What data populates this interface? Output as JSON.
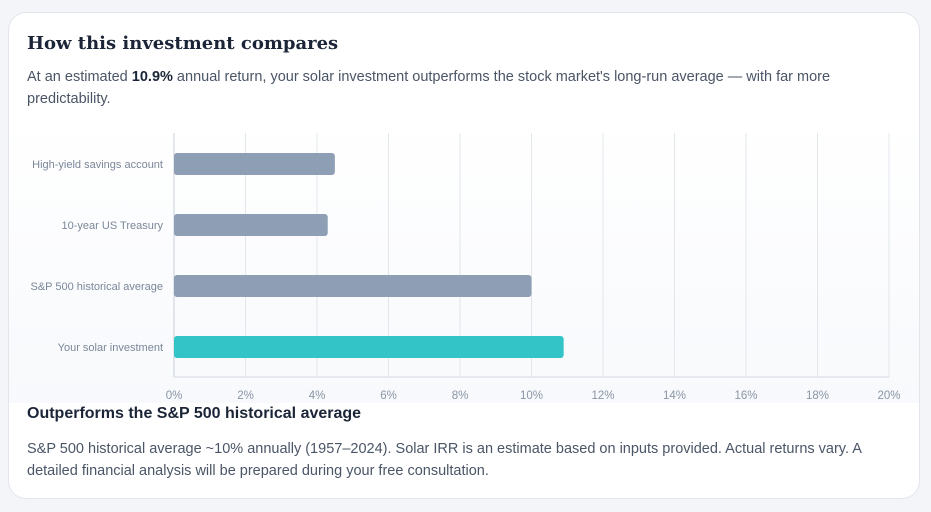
{
  "card": {
    "title": "How this investment compares",
    "intro_before": "At an estimated ",
    "intro_highlight": "10.9%",
    "intro_after": " annual return, your solar investment outperforms the stock market's long-run average — with far more predictability.",
    "subheading": "Outperforms the S&P 500 historical average",
    "footnote": "S&P 500 historical average ~10% annually (1957–2024). Solar IRR is an estimate based on inputs provided. Actual returns vary. A detailed financial analysis will be prepared during your free consultation."
  },
  "chart_data": {
    "type": "bar",
    "orientation": "horizontal",
    "categories": [
      "High-yield savings account",
      "10-year US Treasury",
      "S&P 500 historical average",
      "Your solar investment"
    ],
    "values": [
      4.5,
      4.3,
      10.0,
      10.9
    ],
    "unit": "%",
    "xlim": [
      0,
      20
    ],
    "xticks": [
      0,
      2,
      4,
      6,
      8,
      10,
      12,
      14,
      16,
      18,
      20
    ],
    "xtick_labels": [
      "0%",
      "2%",
      "4%",
      "6%",
      "8%",
      "10%",
      "12%",
      "14%",
      "16%",
      "18%",
      "20%"
    ],
    "grid": true,
    "colors": [
      "#8e9fb5",
      "#8e9fb5",
      "#8e9fb5",
      "#33c4c8"
    ],
    "gridline_color": "#e3e7ec"
  }
}
